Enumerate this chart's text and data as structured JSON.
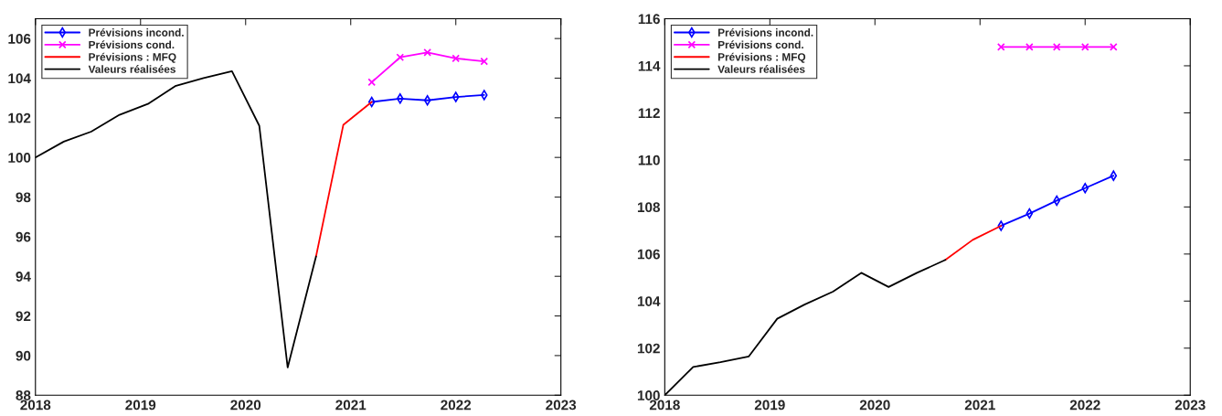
{
  "chart_data": [
    {
      "type": "line",
      "legend": "top left",
      "grid": false,
      "xlim": [
        2018,
        2023
      ],
      "xticks": [
        2018,
        2019,
        2020,
        2021,
        2022,
        2023
      ],
      "ylim": [
        88,
        107
      ],
      "yticks": [
        88,
        90,
        92,
        94,
        96,
        98,
        100,
        102,
        104,
        106
      ],
      "series": [
        {
          "name": "Prévisions incond.",
          "color": "#0000ff",
          "marker": "diamond",
          "x": [
            2021.2,
            2021.47,
            2021.73,
            2022.0,
            2022.27
          ],
          "values": [
            102.8,
            102.97,
            102.88,
            103.05,
            103.15
          ]
        },
        {
          "name": "Prévisions cond.",
          "color": "#ff00ff",
          "marker": "cross",
          "x": [
            2021.2,
            2021.47,
            2021.73,
            2022.0,
            2022.27
          ],
          "values": [
            103.8,
            105.05,
            105.3,
            105.0,
            104.85
          ]
        },
        {
          "name": "Prévisions : MFQ",
          "color": "#ff0000",
          "marker": "none",
          "x": [
            2020.67,
            2020.93,
            2021.2
          ],
          "values": [
            95.0,
            101.65,
            102.8
          ]
        },
        {
          "name": "Valeurs réalisées",
          "color": "#000000",
          "marker": "none",
          "x": [
            2018.0,
            2018.27,
            2018.53,
            2018.8,
            2019.07,
            2019.33,
            2019.6,
            2019.87,
            2020.13,
            2020.4,
            2020.67
          ],
          "values": [
            100.0,
            100.8,
            101.3,
            102.15,
            102.7,
            103.6,
            104.0,
            104.35,
            101.6,
            89.4,
            95.0
          ]
        }
      ]
    },
    {
      "type": "line",
      "legend": "top left",
      "grid": false,
      "xlim": [
        2018,
        2023
      ],
      "xticks": [
        2018,
        2019,
        2020,
        2021,
        2022,
        2023
      ],
      "ylim": [
        100,
        116
      ],
      "yticks": [
        100,
        102,
        104,
        106,
        108,
        110,
        112,
        114,
        116
      ],
      "series": [
        {
          "name": "Prévisions incond.",
          "color": "#0000ff",
          "marker": "diamond",
          "x": [
            2021.2,
            2021.47,
            2021.73,
            2022.0,
            2022.27
          ],
          "values": [
            107.2,
            107.72,
            108.27,
            108.8,
            109.33
          ]
        },
        {
          "name": "Prévisions cond.",
          "color": "#ff00ff",
          "marker": "cross",
          "x": [
            2021.2,
            2021.47,
            2021.73,
            2022.0,
            2022.27
          ],
          "values": [
            114.8,
            114.8,
            114.8,
            114.8,
            114.8
          ]
        },
        {
          "name": "Prévisions : MFQ",
          "color": "#ff0000",
          "marker": "none",
          "x": [
            2020.67,
            2020.93,
            2021.2
          ],
          "values": [
            105.75,
            106.6,
            107.2
          ]
        },
        {
          "name": "Valeurs réalisées",
          "color": "#000000",
          "marker": "none",
          "x": [
            2018.0,
            2018.27,
            2018.53,
            2018.8,
            2019.07,
            2019.33,
            2019.6,
            2019.87,
            2020.13,
            2020.4,
            2020.67
          ],
          "values": [
            100.0,
            101.2,
            101.4,
            101.65,
            103.25,
            103.85,
            104.4,
            105.2,
            104.6,
            105.2,
            105.75
          ]
        }
      ]
    }
  ]
}
